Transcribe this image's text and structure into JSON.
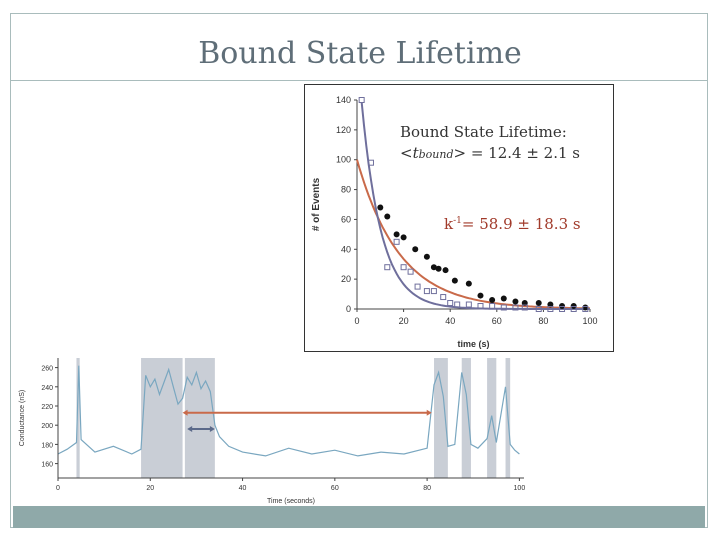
{
  "slide": {
    "title": "Bound State Lifetime"
  },
  "annotations": {
    "lifetime_label": "Bound State Lifetime:",
    "lifetime_lt": "<",
    "lifetime_t": "t",
    "lifetime_sub": "bound",
    "lifetime_rest": "> = 12.4 ± 2.1 s",
    "k_inv_k": "k",
    "k_inv_sup": "-1",
    "k_inv_rest": "= 58.9 ± 18.3 s"
  },
  "colors": {
    "filled_fit": "#c96a4a",
    "open_fit": "#6f6f9c",
    "trace": "#7aa7c0",
    "shade": "#c9ced6",
    "long_arrow": "#c96a4a",
    "short_arrow": "#5b6a8a"
  },
  "chart_data": [
    {
      "type": "scatter",
      "title": "",
      "xlabel": "time (s)",
      "ylabel": "# of Events",
      "xlim": [
        0,
        100
      ],
      "ylim": [
        0,
        140
      ],
      "xticks": [
        "0",
        "20",
        "40",
        "60",
        "80",
        "100"
      ],
      "yticks": [
        "0",
        "20",
        "40",
        "60",
        "80",
        "100",
        "120",
        "140"
      ],
      "grid": false,
      "series": [
        {
          "marker": "filled-circle",
          "x": [
            10,
            13,
            17,
            20,
            25,
            30,
            33,
            35,
            38,
            42,
            48,
            53,
            58,
            63,
            68,
            72,
            78,
            83,
            88,
            93,
            98
          ],
          "y": [
            68,
            62,
            50,
            48,
            40,
            35,
            28,
            27,
            26,
            19,
            17,
            9,
            6,
            7,
            5,
            4,
            4,
            3,
            2,
            2,
            1
          ]
        },
        {
          "marker": "open-square",
          "x": [
            2,
            6,
            13,
            17,
            20,
            23,
            26,
            30,
            33,
            37,
            40,
            43,
            48,
            53,
            58,
            63,
            68,
            72,
            78,
            83,
            88,
            93,
            98
          ],
          "y": [
            140,
            98,
            28,
            45,
            28,
            25,
            15,
            12,
            12,
            8,
            4,
            3,
            3,
            2,
            2,
            1,
            1,
            1,
            0,
            0,
            0,
            0,
            0
          ]
        }
      ],
      "fits": [
        {
          "name": "",
          "a": 100,
          "tau": 18.3,
          "color": "filled_fit"
        },
        {
          "name": "",
          "a": 175,
          "tau": 8.5,
          "color": "open_fit"
        }
      ]
    },
    {
      "type": "line",
      "title": "",
      "xlabel": "Time (seconds)",
      "ylabel": "Conductance (nS)",
      "xlim": [
        0,
        101
      ],
      "ylim": [
        145,
        270
      ],
      "xticks": [
        "0",
        "20",
        "40",
        "60",
        "80",
        "100"
      ],
      "yticks": [
        "160",
        "180",
        "200",
        "220",
        "240",
        "260"
      ],
      "shaded_intervals": [
        [
          4,
          4.7
        ],
        [
          18,
          27
        ],
        [
          27.5,
          34
        ],
        [
          81.5,
          84.5
        ],
        [
          87.5,
          89.5
        ],
        [
          93,
          95
        ],
        [
          97,
          98
        ]
      ],
      "arrows": [
        {
          "from": 27,
          "to": 81,
          "level": 213,
          "color": "long_arrow"
        },
        {
          "from": 28,
          "to": 34,
          "level": 196,
          "color": "short_arrow"
        }
      ],
      "x": [
        0,
        2,
        4,
        4.5,
        5,
        8,
        12,
        16,
        18,
        19,
        20,
        21,
        22,
        23,
        24,
        25,
        26,
        27,
        28,
        29,
        30,
        31,
        32,
        33,
        34,
        35,
        37,
        40,
        45,
        50,
        55,
        60,
        65,
        70,
        75,
        80,
        81.5,
        82.5,
        83.5,
        84.5,
        86,
        87.5,
        88.5,
        89.5,
        91,
        93,
        94,
        95,
        97,
        98,
        99,
        100
      ],
      "y": [
        170,
        175,
        182,
        262,
        185,
        172,
        178,
        170,
        175,
        252,
        240,
        248,
        232,
        245,
        258,
        240,
        222,
        228,
        250,
        242,
        255,
        238,
        246,
        235,
        200,
        188,
        178,
        172,
        168,
        176,
        170,
        174,
        168,
        172,
        170,
        176,
        242,
        255,
        230,
        178,
        180,
        255,
        232,
        180,
        176,
        186,
        210,
        182,
        240,
        180,
        174,
        170
      ]
    }
  ]
}
